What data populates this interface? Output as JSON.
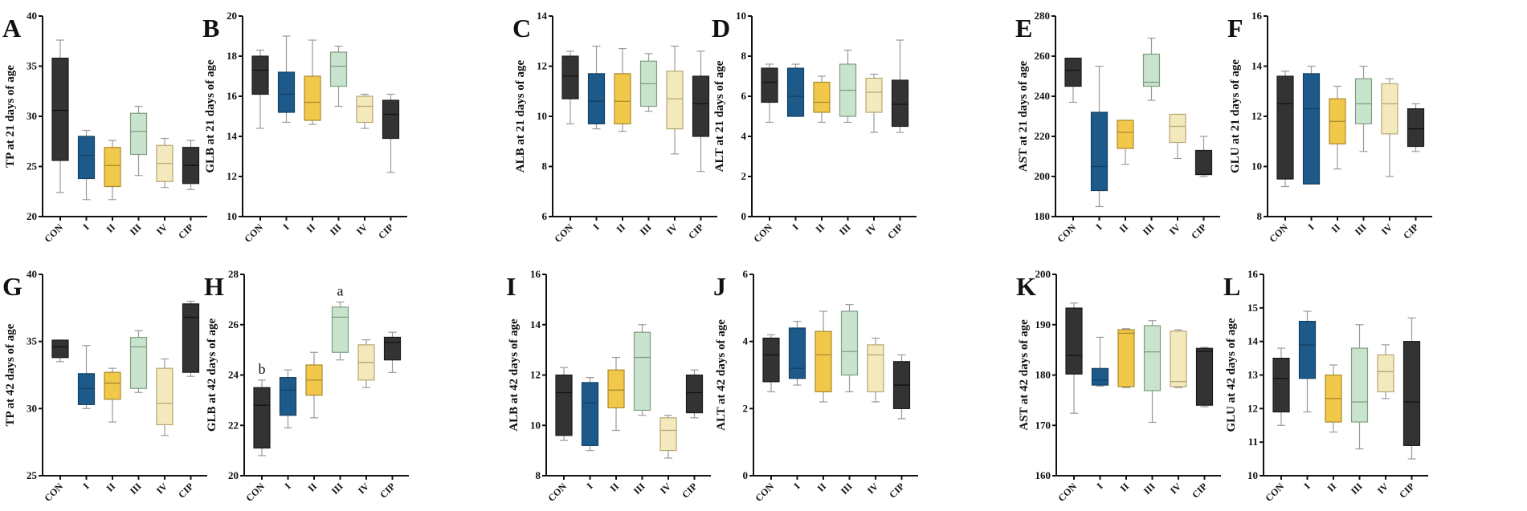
{
  "chart_data": [
    {
      "type": "box",
      "panel": "A",
      "ylabel": "TP at 21 days of age",
      "ylim": [
        20,
        40
      ],
      "yticks": [
        "20",
        "25",
        "30",
        "35",
        "40"
      ],
      "categories": [
        "CON",
        "I",
        "II",
        "III",
        "IV",
        "CIP"
      ],
      "boxes": [
        [
          22.4,
          25.6,
          30.6,
          35.8,
          37.6
        ],
        [
          21.7,
          23.8,
          26.1,
          28.0,
          28.6
        ],
        [
          21.7,
          23.0,
          25.1,
          26.9,
          27.6
        ],
        [
          24.1,
          26.2,
          28.5,
          30.3,
          31.0
        ],
        [
          22.9,
          23.5,
          25.3,
          27.1,
          27.8
        ],
        [
          22.7,
          23.3,
          25.1,
          26.9,
          27.6
        ]
      ],
      "annotations": [
        "",
        "",
        "",
        "",
        "",
        ""
      ]
    },
    {
      "type": "box",
      "panel": "B",
      "ylabel": "GLB at 21 days of age",
      "ylim": [
        10,
        20
      ],
      "yticks": [
        "10",
        "12",
        "14",
        "16",
        "18",
        "20"
      ],
      "categories": [
        "CON",
        "I",
        "II",
        "III",
        "IV",
        "CIP"
      ],
      "boxes": [
        [
          14.4,
          16.1,
          17.3,
          18.0,
          18.3
        ],
        [
          14.7,
          15.2,
          16.1,
          17.2,
          19.0
        ],
        [
          14.6,
          14.8,
          15.7,
          17.0,
          18.8
        ],
        [
          15.5,
          16.5,
          17.5,
          18.2,
          18.5
        ],
        [
          14.4,
          14.7,
          15.5,
          16.0,
          16.1
        ],
        [
          12.2,
          13.9,
          15.1,
          15.8,
          16.1
        ]
      ],
      "annotations": [
        "",
        "",
        "",
        "",
        "",
        ""
      ]
    },
    {
      "type": "box",
      "panel": "C",
      "ylabel": "ALB at 21 days of age",
      "ylim": [
        6,
        14
      ],
      "yticks": [
        "6",
        "8",
        "10",
        "12",
        "14"
      ],
      "categories": [
        "CON",
        "I",
        "II",
        "III",
        "IV",
        "CIP"
      ],
      "boxes": [
        [
          9.7,
          10.7,
          11.6,
          12.4,
          12.6
        ],
        [
          9.5,
          9.7,
          10.6,
          11.7,
          12.8
        ],
        [
          9.4,
          9.7,
          10.6,
          11.7,
          12.7
        ],
        [
          10.2,
          10.4,
          11.3,
          12.2,
          12.5
        ],
        [
          8.5,
          9.5,
          10.7,
          11.8,
          12.8
        ],
        [
          7.8,
          9.2,
          10.5,
          11.6,
          12.6
        ]
      ],
      "annotations": [
        "",
        "",
        "",
        "",
        "",
        ""
      ]
    },
    {
      "type": "box",
      "panel": "D",
      "ylabel": "ALT at 21 days of age",
      "ylim": [
        0,
        10
      ],
      "yticks": [
        "0",
        "2",
        "4",
        "6",
        "8",
        "10"
      ],
      "categories": [
        "CON",
        "I",
        "II",
        "III",
        "IV",
        "CIP"
      ],
      "boxes": [
        [
          4.7,
          5.7,
          6.7,
          7.4,
          7.6
        ],
        [
          5.0,
          5.0,
          6.0,
          7.4,
          7.6
        ],
        [
          4.7,
          5.2,
          5.7,
          6.7,
          7.0
        ],
        [
          4.7,
          5.0,
          6.3,
          7.6,
          8.3
        ],
        [
          4.2,
          5.2,
          6.2,
          6.9,
          7.1
        ],
        [
          4.2,
          4.5,
          5.6,
          6.8,
          8.8
        ]
      ],
      "annotations": [
        "",
        "",
        "",
        "",
        "",
        ""
      ]
    },
    {
      "type": "box",
      "panel": "E",
      "ylabel": "AST at 21 days of age",
      "ylim": [
        180,
        280
      ],
      "yticks": [
        "180",
        "200",
        "220",
        "240",
        "260",
        "280"
      ],
      "categories": [
        "CON",
        "I",
        "II",
        "III",
        "IV",
        "CIP"
      ],
      "boxes": [
        [
          237,
          245,
          253,
          259,
          259
        ],
        [
          185,
          193,
          205,
          232,
          255
        ],
        [
          206,
          214,
          222,
          228,
          228
        ],
        [
          238,
          245,
          247,
          261,
          269
        ],
        [
          209,
          217,
          225,
          231,
          231
        ],
        [
          200,
          201,
          201,
          213,
          220
        ]
      ],
      "annotations": [
        "",
        "",
        "",
        "",
        "",
        ""
      ]
    },
    {
      "type": "box",
      "panel": "F",
      "ylabel": "GLU at 21 days of age",
      "ylim": [
        8,
        16
      ],
      "yticks": [
        "8",
        "10",
        "12",
        "14",
        "16"
      ],
      "categories": [
        "CON",
        "I",
        "II",
        "III",
        "IV",
        "CIP"
      ],
      "boxes": [
        [
          9.2,
          9.5,
          12.5,
          13.6,
          13.8
        ],
        [
          9.3,
          9.3,
          12.3,
          13.7,
          14.0
        ],
        [
          9.9,
          10.9,
          11.8,
          12.7,
          13.2
        ],
        [
          10.6,
          11.7,
          12.5,
          13.5,
          14.0
        ],
        [
          9.6,
          11.3,
          12.5,
          13.3,
          13.5
        ],
        [
          10.6,
          10.8,
          11.5,
          12.3,
          12.5
        ]
      ],
      "annotations": [
        "",
        "",
        "",
        "",
        "",
        ""
      ]
    },
    {
      "type": "box",
      "panel": "G",
      "ylabel": "TP at 42 days of age",
      "ylim": [
        25,
        40
      ],
      "yticks": [
        "25",
        "30",
        "35",
        "40"
      ],
      "categories": [
        "CON",
        "I",
        "II",
        "III",
        "IV",
        "CIP"
      ],
      "boxes": [
        [
          33.5,
          33.8,
          34.6,
          35.1,
          35.1
        ],
        [
          30.0,
          30.3,
          31.5,
          32.6,
          34.7
        ],
        [
          29.0,
          30.7,
          31.9,
          32.7,
          33.0
        ],
        [
          31.2,
          31.5,
          34.6,
          35.3,
          35.8
        ],
        [
          28.0,
          28.8,
          30.4,
          33.0,
          33.7
        ],
        [
          32.4,
          32.7,
          36.8,
          37.8,
          38.0
        ]
      ],
      "annotations": [
        "",
        "",
        "",
        "",
        "",
        ""
      ]
    },
    {
      "type": "box",
      "panel": "H",
      "ylabel": "GLB at 42 days of age",
      "ylim": [
        20,
        28
      ],
      "yticks": [
        "20",
        "22",
        "24",
        "26",
        "28"
      ],
      "categories": [
        "CON",
        "I",
        "II",
        "III",
        "IV",
        "CIP"
      ],
      "boxes": [
        [
          20.8,
          21.1,
          22.8,
          23.5,
          23.8
        ],
        [
          21.9,
          22.4,
          23.4,
          23.9,
          24.2
        ],
        [
          22.3,
          23.2,
          23.8,
          24.4,
          24.9
        ],
        [
          24.6,
          24.9,
          26.3,
          26.7,
          26.9
        ],
        [
          23.5,
          23.8,
          24.5,
          25.2,
          25.4
        ],
        [
          24.1,
          24.6,
          25.3,
          25.5,
          25.7
        ]
      ],
      "annotations": [
        "b",
        "",
        "",
        "a",
        "",
        ""
      ]
    },
    {
      "type": "box",
      "panel": "I",
      "ylabel": "ALB at 42 days of age",
      "ylim": [
        8,
        16
      ],
      "yticks": [
        "8",
        "10",
        "12",
        "14",
        "16"
      ],
      "categories": [
        "CON",
        "I",
        "II",
        "III",
        "IV",
        "CIP"
      ],
      "boxes": [
        [
          9.4,
          9.6,
          11.3,
          12.0,
          12.3
        ],
        [
          9.0,
          9.2,
          10.9,
          11.7,
          11.9
        ],
        [
          9.8,
          10.7,
          11.4,
          12.2,
          12.7
        ],
        [
          10.4,
          10.6,
          12.7,
          13.7,
          14.0
        ],
        [
          8.7,
          9.0,
          9.8,
          10.3,
          10.4
        ],
        [
          10.3,
          10.5,
          11.3,
          12.0,
          12.2
        ]
      ],
      "annotations": [
        "",
        "",
        "",
        "",
        "",
        ""
      ]
    },
    {
      "type": "box",
      "panel": "J",
      "ylabel": "ALT at 42 days of age",
      "ylim": [
        0,
        6
      ],
      "yticks": [
        "0",
        "2",
        "4",
        "6"
      ],
      "categories": [
        "CON",
        "I",
        "II",
        "III",
        "IV",
        "CIP"
      ],
      "boxes": [
        [
          2.5,
          2.8,
          3.6,
          4.1,
          4.2
        ],
        [
          2.7,
          2.9,
          3.2,
          4.4,
          4.6
        ],
        [
          2.2,
          2.5,
          3.6,
          4.3,
          4.9
        ],
        [
          2.5,
          3.0,
          3.7,
          4.9,
          5.1
        ],
        [
          2.2,
          2.5,
          3.6,
          3.9,
          4.1
        ],
        [
          1.7,
          2.0,
          2.7,
          3.4,
          3.6
        ]
      ],
      "annotations": [
        "",
        "",
        "",
        "",
        "",
        ""
      ]
    },
    {
      "type": "box",
      "panel": "K",
      "ylabel": "AST at 42 days of age",
      "ylim": [
        160,
        200
      ],
      "yticks": [
        "160",
        "170",
        "180",
        "190",
        "200"
      ],
      "categories": [
        "CON",
        "I",
        "II",
        "III",
        "IV",
        "CIP"
      ],
      "boxes": [
        [
          172.4,
          180.2,
          183.9,
          193.3,
          194.3
        ],
        [
          177.8,
          178.0,
          179.0,
          181.3,
          187.5
        ],
        [
          177.5,
          177.7,
          188.3,
          189.0,
          189.2
        ],
        [
          170.6,
          176.9,
          184.6,
          189.8,
          190.8
        ],
        [
          177.5,
          177.7,
          178.7,
          188.7,
          189.0
        ],
        [
          173.7,
          174.0,
          184.7,
          185.3,
          185.5
        ]
      ],
      "annotations": [
        "",
        "",
        "",
        "",
        "",
        ""
      ]
    },
    {
      "type": "box",
      "panel": "L",
      "ylabel": "GLU at 42 days of age",
      "ylim": [
        10,
        16
      ],
      "yticks": [
        "10",
        "11",
        "12",
        "13",
        "14",
        "15",
        "16"
      ],
      "categories": [
        "CON",
        "I",
        "II",
        "III",
        "IV",
        "CIP"
      ],
      "boxes": [
        [
          11.5,
          11.9,
          12.9,
          13.5,
          13.8
        ],
        [
          11.9,
          12.9,
          13.9,
          14.6,
          14.9
        ],
        [
          11.3,
          11.6,
          12.3,
          13.0,
          13.3
        ],
        [
          10.8,
          11.6,
          12.2,
          13.8,
          14.5
        ],
        [
          12.3,
          12.5,
          13.1,
          13.6,
          13.9
        ],
        [
          10.5,
          10.9,
          12.2,
          14.0,
          14.7
        ]
      ],
      "annotations": [
        "",
        "",
        "",
        "",
        "",
        ""
      ]
    }
  ],
  "colors": {
    "group_fill": [
      "#333333",
      "#1d5a8a",
      "#f2c84b",
      "#c9e4cd",
      "#f4e9bd",
      "#333333"
    ],
    "group_stroke": [
      "#1a1a1a",
      "#123f63",
      "#a88a2a",
      "#7f9d83",
      "#b3a772",
      "#1a1a1a"
    ],
    "axis": "#111111",
    "whisker": "#9a9a9a"
  }
}
